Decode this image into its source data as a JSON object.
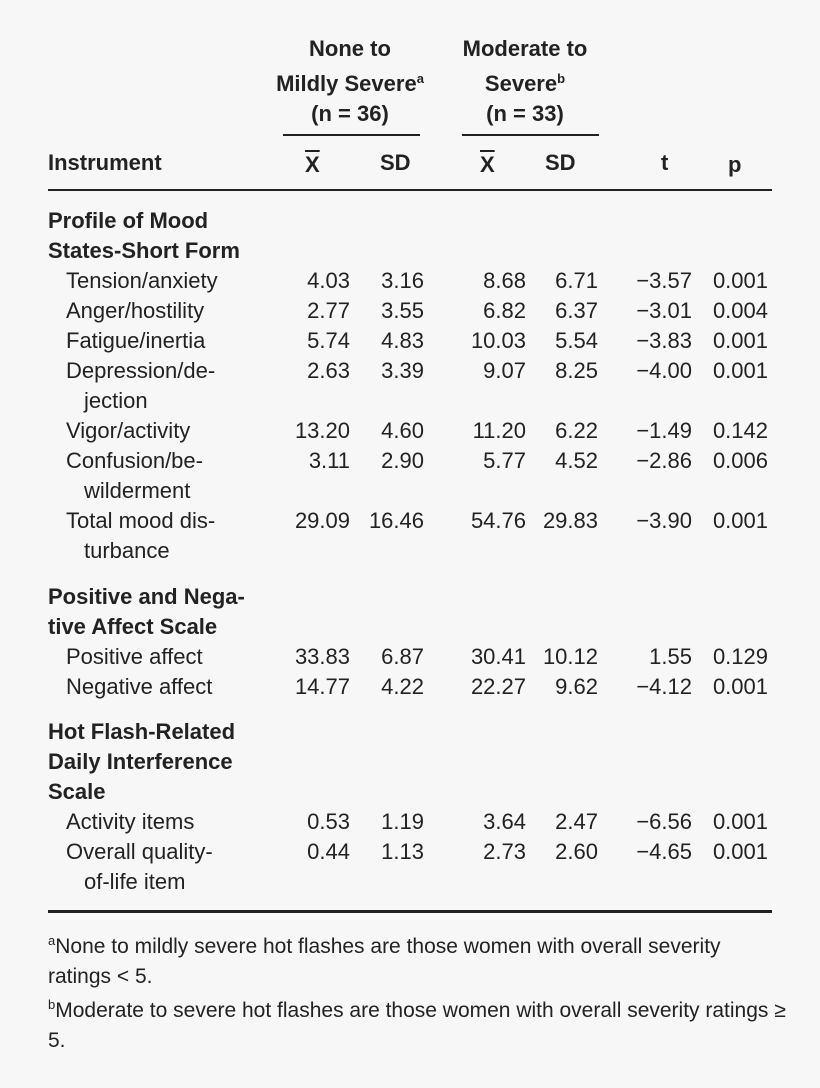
{
  "header": {
    "group1": {
      "line1": "None to",
      "line2": "Mildly Severe",
      "sup": "a",
      "n": "(n = 36)"
    },
    "group2": {
      "line1": "Moderate to",
      "line2": "Severe",
      "sup": "b",
      "n": "(n = 33)"
    },
    "cols": {
      "instrument": "Instrument",
      "mean1": "X",
      "sd1": "SD",
      "mean2": "X",
      "sd2": "SD",
      "t": "t",
      "p": "p"
    }
  },
  "sections": [
    {
      "title": [
        "Profile of Mood",
        "States-Short Form"
      ],
      "rows": [
        {
          "label": [
            "Tension/anxiety"
          ],
          "m1": "4.03",
          "sd1": "3.16",
          "m2": "8.68",
          "sd2": "6.71",
          "t": "−3.57",
          "p": "0.001"
        },
        {
          "label": [
            "Anger/hostility"
          ],
          "m1": "2.77",
          "sd1": "3.55",
          "m2": "6.82",
          "sd2": "6.37",
          "t": "−3.01",
          "p": "0.004"
        },
        {
          "label": [
            "Fatigue/inertia"
          ],
          "m1": "5.74",
          "sd1": "4.83",
          "m2": "10.03",
          "sd2": "5.54",
          "t": "−3.83",
          "p": "0.001"
        },
        {
          "label": [
            "Depression/de-",
            "jection"
          ],
          "m1": "2.63",
          "sd1": "3.39",
          "m2": "9.07",
          "sd2": "8.25",
          "t": "−4.00",
          "p": "0.001"
        },
        {
          "label": [
            "Vigor/activity"
          ],
          "m1": "13.20",
          "sd1": "4.60",
          "m2": "11.20",
          "sd2": "6.22",
          "t": "−1.49",
          "p": "0.142"
        },
        {
          "label": [
            "Confusion/be-",
            "wilderment"
          ],
          "m1": "3.11",
          "sd1": "2.90",
          "m2": "5.77",
          "sd2": "4.52",
          "t": "−2.86",
          "p": "0.006"
        },
        {
          "label": [
            "Total mood dis-",
            "turbance"
          ],
          "m1": "29.09",
          "sd1": "16.46",
          "m2": "54.76",
          "sd2": "29.83",
          "t": "−3.90",
          "p": "0.001"
        }
      ]
    },
    {
      "title": [
        "Positive and Nega-",
        "tive Affect Scale"
      ],
      "rows": [
        {
          "label": [
            "Positive affect"
          ],
          "m1": "33.83",
          "sd1": "6.87",
          "m2": "30.41",
          "sd2": "10.12",
          "t": "1.55",
          "p": "0.129"
        },
        {
          "label": [
            "Negative affect"
          ],
          "m1": "14.77",
          "sd1": "4.22",
          "m2": "22.27",
          "sd2": "9.62",
          "t": "−4.12",
          "p": "0.001"
        }
      ]
    },
    {
      "title": [
        "Hot Flash-Related",
        "Daily Interference",
        "Scale"
      ],
      "rows": [
        {
          "label": [
            "Activity items"
          ],
          "m1": "0.53",
          "sd1": "1.19",
          "m2": "3.64",
          "sd2": "2.47",
          "t": "−6.56",
          "p": "0.001"
        },
        {
          "label": [
            "Overall quality-",
            "of-life item"
          ],
          "m1": "0.44",
          "sd1": "1.13",
          "m2": "2.73",
          "sd2": "2.60",
          "t": "−4.65",
          "p": "0.001"
        }
      ]
    }
  ],
  "footnotes": [
    {
      "sup": "a",
      "text": "None to mildly severe hot flashes are those women with overall severity ratings < 5."
    },
    {
      "sup": "b",
      "text": "Moderate to severe hot flashes are those women with overall severity ratings ≥ 5."
    }
  ]
}
